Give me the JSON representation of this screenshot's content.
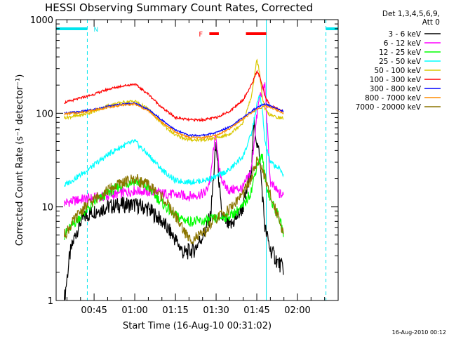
{
  "chart_data": {
    "type": "line",
    "title": "HESSI Observing Summary Count Rates, Corrected",
    "xlabel": "Start Time (16-Aug-10 00:31:02)",
    "ylabel": "Corrected Count Rate (s⁻¹ detector⁻¹)",
    "y_scale": "log",
    "ylim": [
      1,
      1000
    ],
    "xlim_minutes": [
      31.0,
      135.0
    ],
    "xticks": [
      {
        "label": "00:45",
        "value": 45
      },
      {
        "label": "01:00",
        "value": 60
      },
      {
        "label": "01:15",
        "value": 75
      },
      {
        "label": "01:30",
        "value": 90
      },
      {
        "label": "01:45",
        "value": 105
      },
      {
        "label": "02:00",
        "value": 120
      }
    ],
    "yticks": [
      {
        "label": "1",
        "value": 1
      },
      {
        "label": "10",
        "value": 10
      },
      {
        "label": "100",
        "value": 100
      },
      {
        "label": "1000",
        "value": 1000
      }
    ],
    "legend_header": [
      "Det 1,3,4,5,6,9,",
      "Att 0"
    ],
    "legend_position": "right",
    "annotations": [
      {
        "text": "N",
        "color": "#00e5ee"
      },
      {
        "text": "F",
        "color": "#ff0000"
      }
    ],
    "night_intervals": [
      [
        31,
        42.5
      ],
      [
        130.5,
        135
      ]
    ],
    "night_boundaries": [
      42.5,
      108.5,
      130.5
    ],
    "flare_intervals": [
      [
        87.5,
        91
      ],
      [
        101,
        108.5
      ]
    ],
    "footer_date": "16-Aug-2010 00:12",
    "series": [
      {
        "name": "3 - 6 keV",
        "color": "#000000",
        "x": [
          34,
          36,
          38,
          40,
          42,
          45,
          50,
          55,
          60,
          65,
          70,
          75,
          78,
          82,
          86,
          88,
          89,
          90,
          92,
          95,
          100,
          103,
          104,
          105,
          106,
          108,
          110,
          113,
          115
        ],
        "y": [
          1,
          3,
          5,
          7,
          8,
          9,
          10,
          10.5,
          10.5,
          9.5,
          7,
          4.5,
          3.2,
          3.5,
          5.5,
          8,
          20,
          48,
          8,
          6,
          10,
          25,
          80,
          50,
          35,
          6,
          3.5,
          2.5,
          2.2
        ]
      },
      {
        "name": "6 - 12 keV",
        "color": "#ff00ff",
        "x": [
          34,
          40,
          50,
          60,
          70,
          80,
          86,
          88,
          89,
          90,
          91,
          93,
          95,
          100,
          103,
          104,
          105,
          106,
          108,
          110,
          113,
          115
        ],
        "y": [
          11,
          12,
          13,
          15,
          14,
          13,
          14,
          20,
          40,
          60,
          25,
          17,
          15,
          16,
          25,
          50,
          90,
          150,
          200,
          18,
          14,
          13
        ]
      },
      {
        "name": "12 - 25 keV",
        "color": "#00ff00",
        "x": [
          34,
          40,
          45,
          50,
          55,
          60,
          65,
          70,
          75,
          80,
          85,
          90,
          95,
          100,
          103,
          105,
          107,
          108,
          110,
          113,
          115
        ],
        "y": [
          5,
          8,
          11,
          14,
          17,
          19,
          16,
          11,
          8,
          7,
          7,
          7.5,
          8,
          10,
          15,
          28,
          35,
          20,
          12,
          8,
          5
        ]
      },
      {
        "name": "25 - 50 keV",
        "color": "#00ffff",
        "x": [
          34,
          40,
          45,
          50,
          55,
          60,
          65,
          70,
          75,
          80,
          85,
          90,
          95,
          100,
          103,
          105,
          106,
          107,
          108,
          110,
          113,
          115
        ],
        "y": [
          17,
          22,
          28,
          36,
          44,
          50,
          36,
          25,
          19,
          18.5,
          19,
          21,
          25,
          35,
          60,
          120,
          160,
          110,
          50,
          30,
          26,
          22
        ]
      },
      {
        "name": "50 - 100 keV",
        "color": "#d9c800",
        "x": [
          34,
          40,
          45,
          50,
          55,
          60,
          65,
          70,
          75,
          80,
          85,
          90,
          95,
          100,
          103,
          105,
          106,
          107,
          108,
          110,
          113,
          115
        ],
        "y": [
          90,
          95,
          105,
          120,
          130,
          135,
          110,
          78,
          58,
          52,
          52,
          54,
          60,
          80,
          150,
          370,
          280,
          150,
          110,
          95,
          90,
          88
        ]
      },
      {
        "name": "100 - 300 keV",
        "color": "#ff0000",
        "x": [
          34,
          40,
          45,
          50,
          55,
          60,
          65,
          70,
          75,
          80,
          85,
          90,
          95,
          100,
          103,
          105,
          106,
          107,
          108,
          110,
          113,
          115
        ],
        "y": [
          130,
          145,
          160,
          180,
          195,
          205,
          160,
          115,
          90,
          85,
          85,
          90,
          105,
          140,
          200,
          280,
          250,
          200,
          150,
          120,
          110,
          105
        ]
      },
      {
        "name": "300 - 800 keV",
        "color": "#0000ff",
        "x": [
          34,
          40,
          45,
          50,
          55,
          60,
          65,
          70,
          75,
          80,
          85,
          90,
          95,
          100,
          105,
          108,
          110,
          113,
          115
        ],
        "y": [
          100,
          104,
          110,
          118,
          125,
          128,
          110,
          85,
          66,
          58,
          58,
          62,
          72,
          90,
          115,
          125,
          120,
          110,
          105
        ]
      },
      {
        "name": "800 - 7000 keV",
        "color": "#ff8c00",
        "x": [
          34,
          40,
          45,
          50,
          55,
          60,
          65,
          70,
          75,
          80,
          85,
          90,
          95,
          100,
          105,
          108,
          110,
          113,
          115
        ],
        "y": [
          98,
          102,
          108,
          115,
          122,
          125,
          106,
          80,
          63,
          55,
          55,
          58,
          68,
          88,
          110,
          120,
          116,
          106,
          100
        ]
      },
      {
        "name": "7000 - 20000 keV",
        "color": "#8b7500",
        "x": [
          34,
          40,
          45,
          50,
          55,
          60,
          65,
          70,
          75,
          80,
          85,
          90,
          95,
          100,
          103,
          105,
          107,
          108,
          110,
          113,
          115
        ],
        "y": [
          5,
          9,
          12,
          15,
          18,
          20,
          17,
          13,
          8,
          4.5,
          5,
          7.5,
          9.5,
          14,
          20,
          30,
          27,
          20,
          13,
          8,
          5
        ]
      }
    ]
  }
}
